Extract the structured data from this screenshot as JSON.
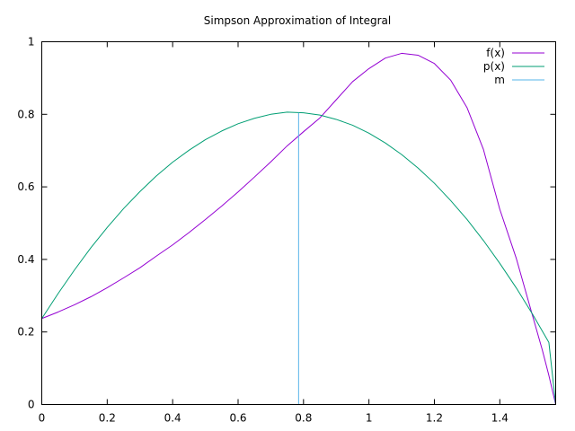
{
  "chart_data": {
    "type": "line",
    "title": "Simpson Approximation of Integral",
    "xlabel": "",
    "ylabel": "",
    "xlim": [
      0,
      1.5708
    ],
    "ylim": [
      0,
      1
    ],
    "x_ticks": [
      {
        "value": 0,
        "label": "0"
      },
      {
        "value": 0.2,
        "label": "0.2"
      },
      {
        "value": 0.4,
        "label": "0.4"
      },
      {
        "value": 0.6,
        "label": "0.6"
      },
      {
        "value": 0.8,
        "label": "0.8"
      },
      {
        "value": 1,
        "label": "1"
      },
      {
        "value": 1.2,
        "label": "1.2"
      },
      {
        "value": 1.4,
        "label": "1.4"
      }
    ],
    "y_ticks": [
      {
        "value": 0,
        "label": "0"
      },
      {
        "value": 0.2,
        "label": "0.2"
      },
      {
        "value": 0.4,
        "label": "0.4"
      },
      {
        "value": 0.6,
        "label": "0.6"
      },
      {
        "value": 0.8,
        "label": "0.8"
      },
      {
        "value": 1,
        "label": "1"
      }
    ],
    "grid": false,
    "legend_position": "top-right",
    "series": [
      {
        "name": "f(x)",
        "color": "#9400d3",
        "kind": "line",
        "x": [
          0,
          0.05,
          0.1,
          0.15,
          0.2,
          0.25,
          0.3,
          0.35,
          0.4,
          0.45,
          0.5,
          0.55,
          0.6,
          0.65,
          0.7,
          0.75,
          0.8,
          0.85,
          0.9,
          0.95,
          1.0,
          1.05,
          1.1,
          1.15,
          1.2,
          1.25,
          1.3,
          1.35,
          1.4,
          1.45,
          1.5,
          1.53,
          1.55,
          1.5708
        ],
        "y": [
          0.237,
          0.255,
          0.275,
          0.297,
          0.322,
          0.349,
          0.377,
          0.409,
          0.44,
          0.474,
          0.51,
          0.547,
          0.586,
          0.627,
          0.669,
          0.713,
          0.752,
          0.79,
          0.84,
          0.89,
          0.926,
          0.955,
          0.968,
          0.963,
          0.94,
          0.894,
          0.818,
          0.703,
          0.538,
          0.404,
          0.245,
          0.15,
          0.08,
          0.0
        ]
      },
      {
        "name": "p(x)",
        "color": "#009e73",
        "kind": "line",
        "x": [
          0,
          0.05,
          0.1,
          0.15,
          0.2,
          0.25,
          0.3,
          0.35,
          0.4,
          0.45,
          0.5,
          0.55,
          0.6,
          0.65,
          0.7,
          0.75,
          0.8,
          0.85,
          0.9,
          0.95,
          1.0,
          1.05,
          1.1,
          1.15,
          1.2,
          1.25,
          1.3,
          1.35,
          1.4,
          1.45,
          1.5,
          1.55,
          1.5708
        ],
        "y": [
          0.237,
          0.306,
          0.371,
          0.432,
          0.488,
          0.54,
          0.587,
          0.63,
          0.668,
          0.701,
          0.73,
          0.754,
          0.774,
          0.789,
          0.8,
          0.806,
          0.804,
          0.798,
          0.786,
          0.77,
          0.748,
          0.721,
          0.689,
          0.652,
          0.61,
          0.562,
          0.51,
          0.452,
          0.389,
          0.322,
          0.249,
          0.171,
          0.0
        ]
      },
      {
        "name": "m",
        "color": "#56b4e9",
        "kind": "vline",
        "x": [
          0.785,
          0.785
        ],
        "y": [
          0,
          0.804
        ]
      }
    ]
  }
}
